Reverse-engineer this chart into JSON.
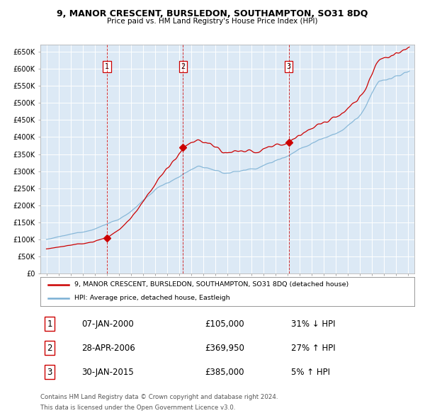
{
  "title": "9, MANOR CRESCENT, BURSLEDON, SOUTHAMPTON, SO31 8DQ",
  "subtitle": "Price paid vs. HM Land Registry's House Price Index (HPI)",
  "plot_bg_color": "#dce9f5",
  "red_line_color": "#cc0000",
  "blue_line_color": "#7ab0d4",
  "vline_color": "#cc0000",
  "grid_color": "#ffffff",
  "ylim": [
    0,
    670000
  ],
  "yticks": [
    0,
    50000,
    100000,
    150000,
    200000,
    250000,
    300000,
    350000,
    400000,
    450000,
    500000,
    550000,
    600000,
    650000
  ],
  "ytick_labels": [
    "£0",
    "£50K",
    "£100K",
    "£150K",
    "£200K",
    "£250K",
    "£300K",
    "£350K",
    "£400K",
    "£450K",
    "£500K",
    "£550K",
    "£600K",
    "£650K"
  ],
  "xlim_start": 1994.5,
  "xlim_end": 2025.5,
  "xticks": [
    1995,
    1996,
    1997,
    1998,
    1999,
    2000,
    2001,
    2002,
    2003,
    2004,
    2005,
    2006,
    2007,
    2008,
    2009,
    2010,
    2011,
    2012,
    2013,
    2014,
    2015,
    2016,
    2017,
    2018,
    2019,
    2020,
    2021,
    2022,
    2023,
    2024,
    2025
  ],
  "sale_dates": [
    2000.03,
    2006.33,
    2015.08
  ],
  "sale_prices": [
    105000,
    369950,
    385000
  ],
  "sale_labels": [
    "1",
    "2",
    "3"
  ],
  "legend_line1": "9, MANOR CRESCENT, BURSLEDON, SOUTHAMPTON, SO31 8DQ (detached house)",
  "legend_line2": "HPI: Average price, detached house, Eastleigh",
  "table_rows": [
    {
      "num": "1",
      "date": "07-JAN-2000",
      "price": "£105,000",
      "hpi": "31% ↓ HPI"
    },
    {
      "num": "2",
      "date": "28-APR-2006",
      "price": "£369,950",
      "hpi": "27% ↑ HPI"
    },
    {
      "num": "3",
      "date": "30-JAN-2015",
      "price": "£385,000",
      "hpi": "5% ↑ HPI"
    }
  ],
  "footer_line1": "Contains HM Land Registry data © Crown copyright and database right 2024.",
  "footer_line2": "This data is licensed under the Open Government Licence v3.0."
}
